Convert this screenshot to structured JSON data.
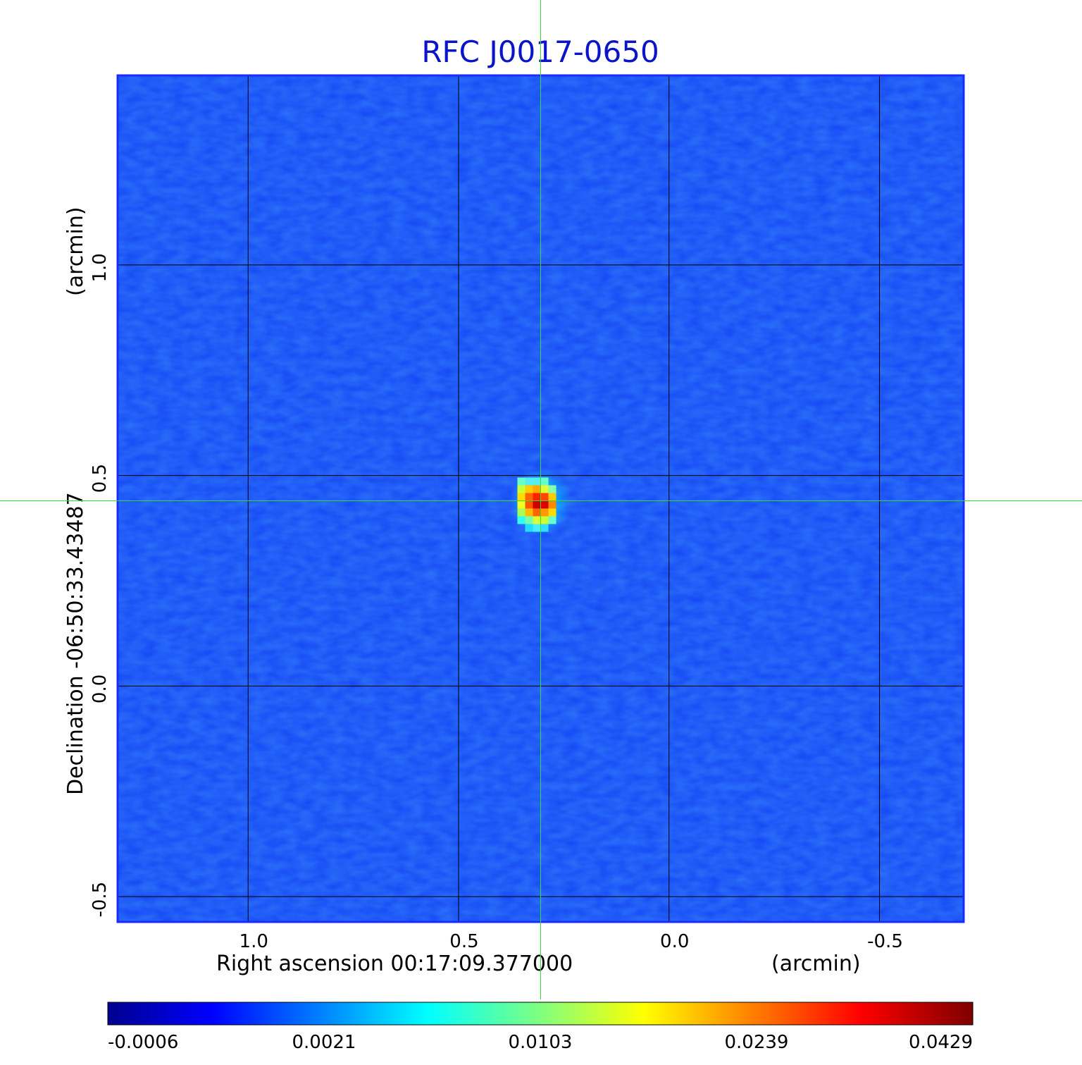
{
  "chart_data": {
    "type": "heatmap",
    "title": "RFC J0017-0650",
    "xlabel": "Right ascension  00:17:09.377000",
    "xunit": "(arcmin)",
    "ylabel": "Declination  -06:50:33.43487",
    "yunit": "(arcmin)",
    "x_range": [
      1.31,
      -0.7
    ],
    "y_range": [
      -0.56,
      1.45
    ],
    "x_ticks": [
      1.0,
      0.5,
      0.0,
      -0.5
    ],
    "x_tick_labels": [
      "1.0",
      "0.5",
      "0.0",
      "-0.5"
    ],
    "y_ticks": [
      1.0,
      0.5,
      0.0,
      -0.5
    ],
    "y_tick_labels": [
      "1.0",
      "0.5",
      "0.0",
      "-0.5"
    ],
    "grid": true,
    "crosshair": {
      "x": 0.305,
      "y": 0.44
    },
    "source": {
      "x": 0.305,
      "y": 0.44,
      "peak": 0.0429
    },
    "colormap": "jet",
    "colorbar": {
      "placement": "bottom",
      "ticks": [
        -0.0006,
        0.0021,
        0.0103,
        0.0239,
        0.0429
      ],
      "tick_labels": [
        "-0.0006",
        "0.0021",
        "0.0103",
        "0.0239",
        "0.0429"
      ]
    },
    "colors": {
      "title": "#0a14c8",
      "grid": "#000000",
      "crosshair": "#33dd33",
      "frame": "#1a2bff",
      "background": "#1446f5"
    }
  }
}
